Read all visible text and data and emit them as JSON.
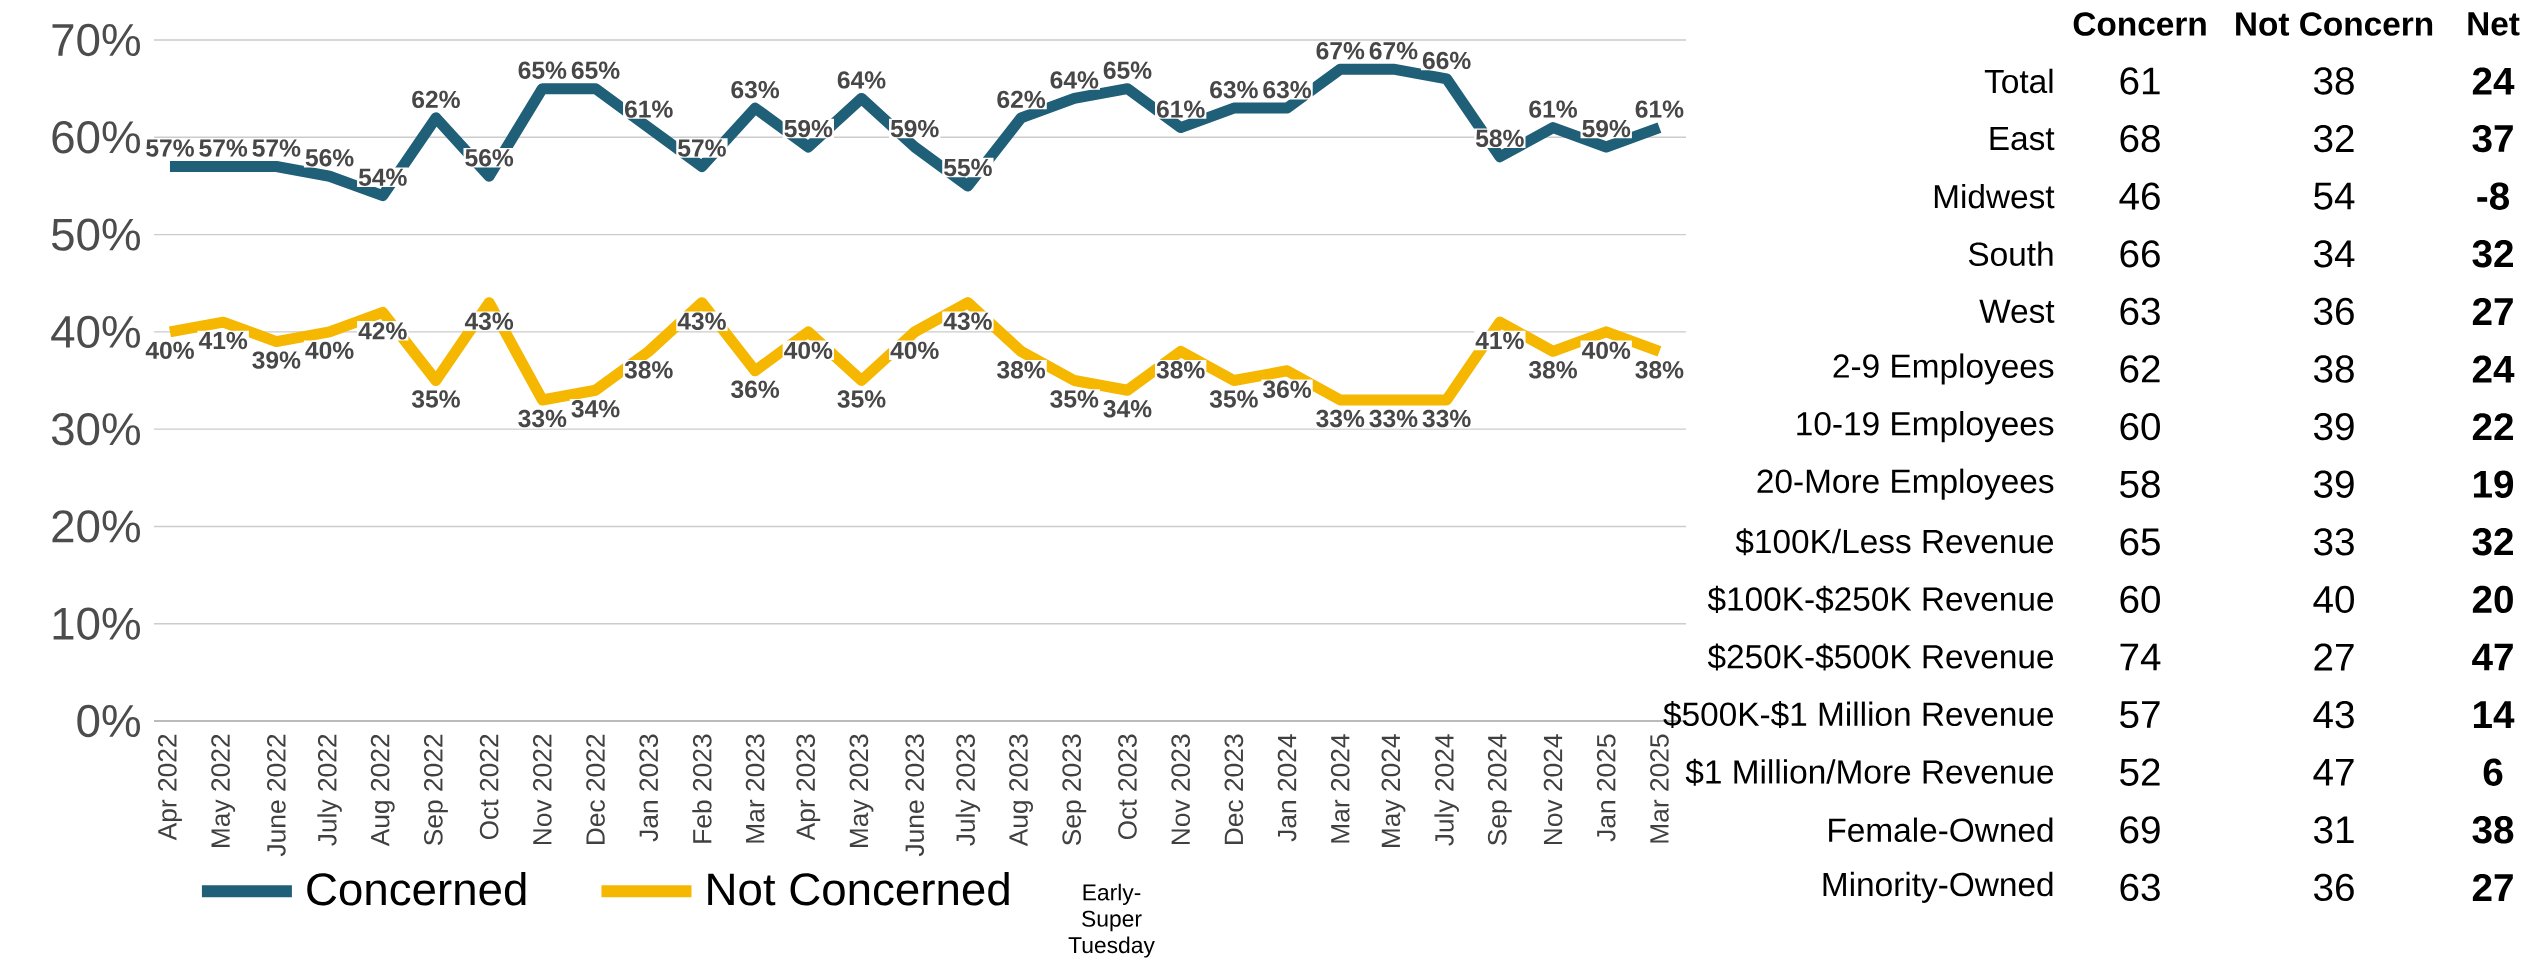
{
  "chart_data": [
    {
      "type": "line",
      "categories": [
        "Apr 2022",
        "May 2022",
        "June 2022",
        "July 2022",
        "Aug 2022",
        "Sep 2022",
        "Oct 2022",
        "Nov 2022",
        "Dec 2022",
        "Jan 2023",
        "Feb 2023",
        "Mar 2023",
        "Apr 2023",
        "May 2023",
        "June 2023",
        "July 2023",
        "Aug 2023",
        "Sep 2023",
        "Oct 2023",
        "Nov 2023",
        "Dec 2023",
        "Jan 2024",
        "Mar 2024",
        "May 2024",
        "July 2024",
        "Sep 2024",
        "Nov 2024",
        "Jan 2025",
        "Mar 2025"
      ],
      "series": [
        {
          "name": "Concerned",
          "color": "#1f5f78",
          "values": [
            57,
            57,
            57,
            56,
            54,
            62,
            56,
            65,
            65,
            61,
            57,
            63,
            59,
            64,
            59,
            55,
            62,
            64,
            65,
            61,
            63,
            63,
            67,
            67,
            66,
            58,
            61,
            59,
            61
          ],
          "value_labels": [
            "57%",
            "57%",
            "57%",
            "56%",
            "54%",
            "62%",
            "56%",
            "65%",
            "65%",
            "61%",
            "57%",
            "63%",
            "59%",
            "64%",
            "59%",
            "55%",
            "62%",
            "64%",
            "65%",
            "61%",
            "63%",
            "63%",
            "67%",
            "67%",
            "66%",
            "58%",
            "61%",
            "59%",
            "61%"
          ]
        },
        {
          "name": "Not Concerned",
          "color": "#f5b700",
          "values": [
            40,
            41,
            39,
            40,
            42,
            35,
            43,
            33,
            34,
            38,
            43,
            36,
            40,
            35,
            40,
            43,
            38,
            35,
            34,
            38,
            35,
            36,
            33,
            33,
            33,
            41,
            38,
            40,
            38
          ],
          "value_labels": [
            "40%",
            "41%",
            "39%",
            "40%",
            "42%",
            "35%",
            "43%",
            "33%",
            "34%",
            "38%",
            "43%",
            "36%",
            "40%",
            "35%",
            "40%",
            "43%",
            "38%",
            "35%",
            "34%",
            "38%",
            "35%",
            "36%",
            "33%",
            "33%",
            "33%",
            "41%",
            "38%",
            "40%",
            "38%"
          ]
        }
      ],
      "ylim": [
        0,
        70
      ],
      "yticks": [
        {
          "value": 0,
          "label": "0%"
        },
        {
          "value": 10,
          "label": "10%"
        },
        {
          "value": 20,
          "label": "20%"
        },
        {
          "value": 30,
          "label": "30%"
        },
        {
          "value": 40,
          "label": "40%"
        },
        {
          "value": 50,
          "label": "50%"
        },
        {
          "value": 60,
          "label": "60%"
        },
        {
          "value": 70,
          "label": "70%"
        }
      ],
      "grid": "y",
      "legend": "bottom",
      "annotations": [
        "Early-Super Tuesday"
      ]
    },
    {
      "type": "other",
      "data_labels": true,
      "categories": [
        "Total",
        "East",
        "Midwest",
        "South",
        "West",
        "2-9 Employees",
        "10-19 Employees",
        "20-More Employees",
        "$100K/Less Revenue",
        "$100K-$250K Revenue",
        "$250K-$500K Revenue",
        "$500K-$1 Million Revenue",
        "$1 Million/More Revenue",
        "Female-Owned",
        "Minority-Owned"
      ],
      "series": [
        {
          "name": "Concern",
          "color": "#000000",
          "values": [
            61,
            68,
            46,
            66,
            63,
            62,
            60,
            58,
            65,
            60,
            74,
            57,
            52,
            69,
            63
          ]
        },
        {
          "name": "Not Concern",
          "color": "#000000",
          "values": [
            38,
            32,
            54,
            34,
            36,
            38,
            39,
            39,
            33,
            40,
            27,
            43,
            47,
            31,
            36
          ]
        },
        {
          "name": "Net",
          "color": "#000000",
          "values": [
            24,
            37,
            -8,
            32,
            27,
            24,
            22,
            19,
            32,
            20,
            47,
            14,
            6,
            38,
            27
          ]
        }
      ]
    }
  ]
}
